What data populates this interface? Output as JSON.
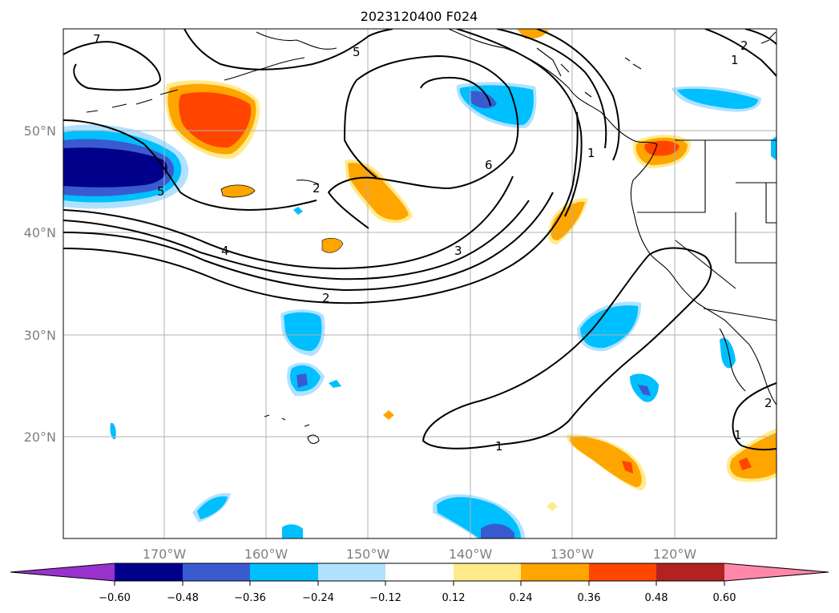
{
  "title": "2023120400 F024",
  "lat_labels": [
    "50°N",
    "40°N",
    "30°N",
    "20°N"
  ],
  "lon_labels": [
    "170°W",
    "160°W",
    "150°W",
    "140°W",
    "130°W",
    "120°W"
  ],
  "contour_labels": [
    "7",
    "5",
    "6",
    "5",
    "2",
    "4",
    "3",
    "2",
    "1",
    "1",
    "1",
    "2",
    "1",
    "2"
  ],
  "colorbar": {
    "labels": [
      "−0.60",
      "−0.48",
      "−0.36",
      "−0.24",
      "−0.12",
      "0.12",
      "0.24",
      "0.36",
      "0.48",
      "0.60"
    ],
    "colors": [
      "#9932cc",
      "#00008b",
      "#3a5bd0",
      "#00bfff",
      "#b0e2ff",
      "#ffffff",
      "#ffeb8a",
      "#ffa500",
      "#ff4500",
      "#b22222",
      "#ff88aa"
    ]
  },
  "palette": {
    "dark_blue": "#00008b",
    "royal_blue": "#3a5bd0",
    "sky_blue": "#00bfff",
    "light_blue": "#b0e2ff",
    "light_yellow": "#ffeb8a",
    "orange": "#ffa500",
    "red_orange": "#ff4500",
    "dark_red": "#b22222",
    "pink": "#ff88aa"
  }
}
